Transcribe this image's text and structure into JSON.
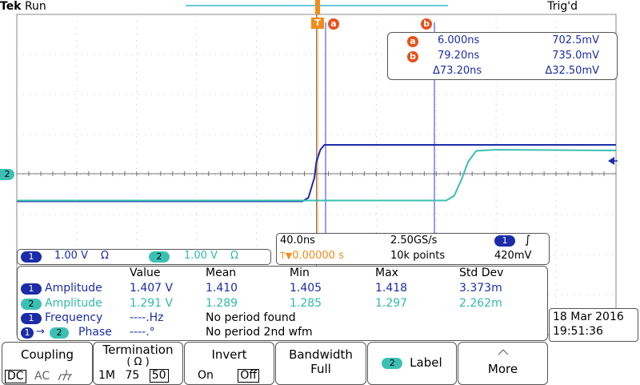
{
  "header": {
    "brand": "Tek",
    "run_state": "Run",
    "trigger_status": "Trig'd"
  },
  "markers": {
    "trigger_marker": "T",
    "cursor_a": "a",
    "cursor_b": "b",
    "ch2_ground": "2"
  },
  "cursor_readout": {
    "a": {
      "badge": "a",
      "time": "6.000ns",
      "volt": "702.5mV"
    },
    "b": {
      "badge": "b",
      "time": "79.20ns",
      "volt": "735.0mV"
    },
    "delta": {
      "time": "Δ73.20ns",
      "volt": "Δ32.50mV"
    }
  },
  "timebase": {
    "scale": "40.0ns",
    "sample_rate": "2.50GS/s",
    "trigger_channel": "1",
    "trigger_slope_icon": "rising-edge",
    "trigger_slope_glyph": "∫",
    "position_prefix": "T▼",
    "position": "0.00000 s",
    "record_length": "10k points",
    "trigger_level": "420mV"
  },
  "channels": [
    {
      "num": "1",
      "scale": "1.00 V",
      "term": "Ω",
      "color": "#1c2ca8"
    },
    {
      "num": "2",
      "scale": "1.00 V",
      "term": "Ω",
      "color": "#3cc0b4"
    }
  ],
  "measurements": {
    "headers": [
      "Value",
      "Mean",
      "Min",
      "Max",
      "Std Dev"
    ],
    "rows": [
      {
        "src": "1",
        "src2": "",
        "label": "Amplitude",
        "value": "1.407 V",
        "mean": "1.410",
        "min": "1.405",
        "max": "1.418",
        "std": "3.373m",
        "note": ""
      },
      {
        "src": "2",
        "src2": "",
        "label": "Amplitude",
        "value": "1.291 V",
        "mean": "1.289",
        "min": "1.285",
        "max": "1.297",
        "std": "2.262m",
        "note": ""
      },
      {
        "src": "1",
        "src2": "",
        "label": "Frequency",
        "value": "----.Hz",
        "note": "No period found"
      },
      {
        "src": "1",
        "src2": "2",
        "arrow": "→",
        "label": "Phase",
        "value": "----.°",
        "note": "No period 2nd wfm"
      }
    ]
  },
  "datetime": {
    "date": "18 Mar  2016",
    "time": "19:51:36"
  },
  "menu": {
    "coupling": {
      "title": "Coupling",
      "opt1": "DC",
      "opt2": "AC",
      "gnd_icon": "ground-icon"
    },
    "termination": {
      "title": "Termination",
      "sub": "( Ω )",
      "opt1": "1M",
      "opt2": "75",
      "opt3": "50"
    },
    "invert": {
      "title": "Invert",
      "opt1": "On",
      "opt2": "Off"
    },
    "bandwidth": {
      "title": "Bandwidth",
      "value": "Full"
    },
    "label": {
      "chip": "2",
      "text": "Label"
    },
    "more": {
      "text": "More"
    }
  },
  "chart_data": {
    "type": "line",
    "x_unit": "s",
    "xlim": [
      -1.5e-07,
      1.5e-07
    ],
    "series": [
      {
        "name": "1",
        "color": "#1c2ca8",
        "x": [
          -1.5e-07,
          -7e-09,
          -4e-09,
          -1e-09,
          0,
          2e-09,
          4e-09,
          1.5e-07
        ],
        "y": [
          -0.69,
          -0.69,
          -0.6,
          -0.1,
          0.3,
          0.6,
          0.72,
          0.72
        ]
      },
      {
        "name": "2",
        "color": "#3cc0b4",
        "x": [
          -1.5e-07,
          6.5e-08,
          6.9e-08,
          7.3e-08,
          7.6e-08,
          8e-08,
          9e-08,
          1.5e-07
        ],
        "y": [
          -0.67,
          -0.67,
          -0.55,
          -0.1,
          0.3,
          0.57,
          0.6,
          0.58
        ]
      }
    ]
  }
}
